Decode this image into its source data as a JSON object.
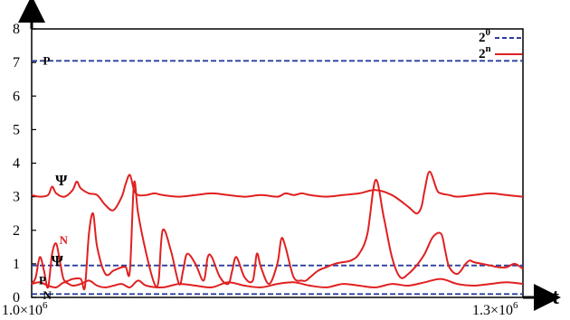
{
  "chart_data": {
    "type": "line",
    "xlabel": "t",
    "x_tick_labels": {
      "start": {
        "mantissa": "1.0",
        "times": "×",
        "base": "10",
        "exp": "6"
      },
      "end": {
        "mantissa": "1.3",
        "times": "×",
        "base": "10",
        "exp": "6"
      }
    },
    "xlim": [
      1000000,
      1300000
    ],
    "ylim": [
      0,
      8
    ],
    "y_ticks": [
      "0",
      "1",
      "2",
      "3",
      "4",
      "5",
      "6",
      "7",
      "8"
    ],
    "grid": false,
    "legend": {
      "position": "top-right",
      "entries": [
        {
          "base": "2",
          "exp": "0",
          "style": "dashed",
          "color": "#2a3d9c"
        },
        {
          "base": "2",
          "exp": "n",
          "style": "solid",
          "color": "#e02020"
        }
      ]
    },
    "annotations": [
      {
        "text": "P",
        "x": 1002500,
        "y": 7.05,
        "color": "#000000"
      },
      {
        "text": "Ψ",
        "x": 1010000,
        "y": 3.45,
        "color": "#000000"
      },
      {
        "text": "N",
        "x": 1012500,
        "y": 1.7,
        "color": "#e02020"
      },
      {
        "text": "Ψ",
        "x": 1007500,
        "y": 1.05,
        "color": "#000000"
      },
      {
        "text": "P",
        "x": 1000000,
        "y": 0.5,
        "color": "#000000"
      },
      {
        "text": "N",
        "x": 1002500,
        "y": 0.05,
        "color": "#000000"
      }
    ],
    "series": [
      {
        "key": "P-2^0",
        "style": "dashed",
        "color": "#2a3d9c",
        "x": [
          1000000,
          1300000
        ],
        "y": [
          7.05,
          7.05
        ]
      },
      {
        "key": "Psi-2^0",
        "style": "dashed",
        "color": "#2a3d9c",
        "x": [
          1000000,
          1300000
        ],
        "y": [
          0.95,
          0.95
        ]
      },
      {
        "key": "N-2^0",
        "style": "dashed",
        "color": "#2a3d9c",
        "x": [
          1000000,
          1300000
        ],
        "y": [
          0.1,
          0.1
        ]
      },
      {
        "key": "Psi-2^n",
        "style": "solid",
        "color": "#e02020",
        "x": [
          1000000,
          1005000,
          1010000,
          1012500,
          1015000,
          1020000,
          1025000,
          1027500,
          1030000,
          1035000,
          1040000,
          1045000,
          1050000,
          1055000,
          1057500,
          1060000,
          1062500,
          1065000,
          1070000,
          1075000,
          1080000,
          1090000,
          1100000,
          1110000,
          1120000,
          1130000,
          1140000,
          1150000,
          1155000,
          1160000,
          1165000,
          1170000,
          1180000,
          1190000,
          1200000,
          1210000,
          1220000,
          1230000,
          1235000,
          1238000,
          1240000,
          1243000,
          1247500,
          1250000,
          1255000,
          1260000,
          1270000,
          1280000,
          1290000,
          1300000
        ],
        "y": [
          3.05,
          3.0,
          3.05,
          3.3,
          3.1,
          3.0,
          3.2,
          3.45,
          3.25,
          3.1,
          3.05,
          2.75,
          2.6,
          3.0,
          3.4,
          3.65,
          3.2,
          3.05,
          3.05,
          3.1,
          3.05,
          3.0,
          3.05,
          3.1,
          3.05,
          3.0,
          3.05,
          3.0,
          3.1,
          3.05,
          3.1,
          3.05,
          3.0,
          3.05,
          3.1,
          3.2,
          3.05,
          2.7,
          2.5,
          2.7,
          3.2,
          3.75,
          3.2,
          3.1,
          3.05,
          3.0,
          3.05,
          3.1,
          3.05,
          3.0
        ]
      },
      {
        "key": "N-2^n",
        "style": "solid",
        "color": "#e02020",
        "x": [
          1000000,
          1002500,
          1005000,
          1007500,
          1010000,
          1012500,
          1015000,
          1017500,
          1020000,
          1025000,
          1030000,
          1032500,
          1035000,
          1037500,
          1040000,
          1045000,
          1050000,
          1055000,
          1057500,
          1060000,
          1062500,
          1065000,
          1070000,
          1075000,
          1077500,
          1080000,
          1085000,
          1090000,
          1092500,
          1095000,
          1100000,
          1105000,
          1107500,
          1110000,
          1115000,
          1120000,
          1122500,
          1125000,
          1130000,
          1135000,
          1137500,
          1140000,
          1145000,
          1150000,
          1152500,
          1155000,
          1160000,
          1165000,
          1167500,
          1170000,
          1175000,
          1180000,
          1185000,
          1190000,
          1195000,
          1200000,
          1205000,
          1210000,
          1215000,
          1220000,
          1225000,
          1230000,
          1235000,
          1240000,
          1245000,
          1250000,
          1252500,
          1255000,
          1260000,
          1265000,
          1267500,
          1270000,
          1275000,
          1280000,
          1285000,
          1290000,
          1295000,
          1300000
        ],
        "y": [
          0.4,
          0.6,
          1.2,
          0.8,
          0.3,
          1.3,
          1.6,
          1.0,
          0.5,
          0.55,
          0.55,
          0.3,
          1.9,
          2.5,
          1.5,
          0.7,
          0.8,
          0.9,
          0.9,
          0.8,
          3.4,
          2.5,
          1.3,
          0.4,
          0.5,
          2.0,
          1.4,
          0.4,
          0.8,
          1.3,
          1.0,
          0.5,
          1.2,
          1.2,
          0.6,
          0.4,
          0.8,
          1.2,
          0.6,
          0.5,
          1.3,
          0.9,
          0.4,
          1.0,
          1.75,
          1.5,
          0.6,
          0.5,
          0.5,
          0.6,
          0.8,
          0.9,
          1.0,
          1.05,
          1.1,
          1.3,
          1.9,
          3.5,
          2.4,
          1.2,
          0.6,
          0.7,
          0.95,
          1.3,
          1.8,
          1.9,
          1.4,
          0.9,
          0.7,
          1.0,
          1.1,
          1.05,
          1.0,
          0.95,
          0.9,
          0.9,
          1.0,
          0.85
        ]
      },
      {
        "key": "P-2^n",
        "style": "solid",
        "color": "#e02020",
        "x": [
          1000000,
          1005000,
          1010000,
          1015000,
          1020000,
          1025000,
          1030000,
          1035000,
          1040000,
          1045000,
          1050000,
          1055000,
          1060000,
          1065000,
          1070000,
          1080000,
          1090000,
          1100000,
          1110000,
          1120000,
          1130000,
          1140000,
          1150000,
          1160000,
          1170000,
          1180000,
          1190000,
          1200000,
          1210000,
          1220000,
          1230000,
          1240000,
          1250000,
          1260000,
          1270000,
          1280000,
          1290000,
          1300000
        ],
        "y": [
          0.4,
          0.45,
          0.35,
          0.3,
          0.45,
          0.35,
          0.4,
          0.5,
          0.35,
          0.3,
          0.35,
          0.4,
          0.3,
          0.5,
          0.35,
          0.3,
          0.4,
          0.35,
          0.3,
          0.45,
          0.35,
          0.3,
          0.4,
          0.45,
          0.35,
          0.3,
          0.4,
          0.35,
          0.3,
          0.4,
          0.35,
          0.45,
          0.55,
          0.4,
          0.35,
          0.4,
          0.45,
          0.4
        ]
      }
    ]
  }
}
